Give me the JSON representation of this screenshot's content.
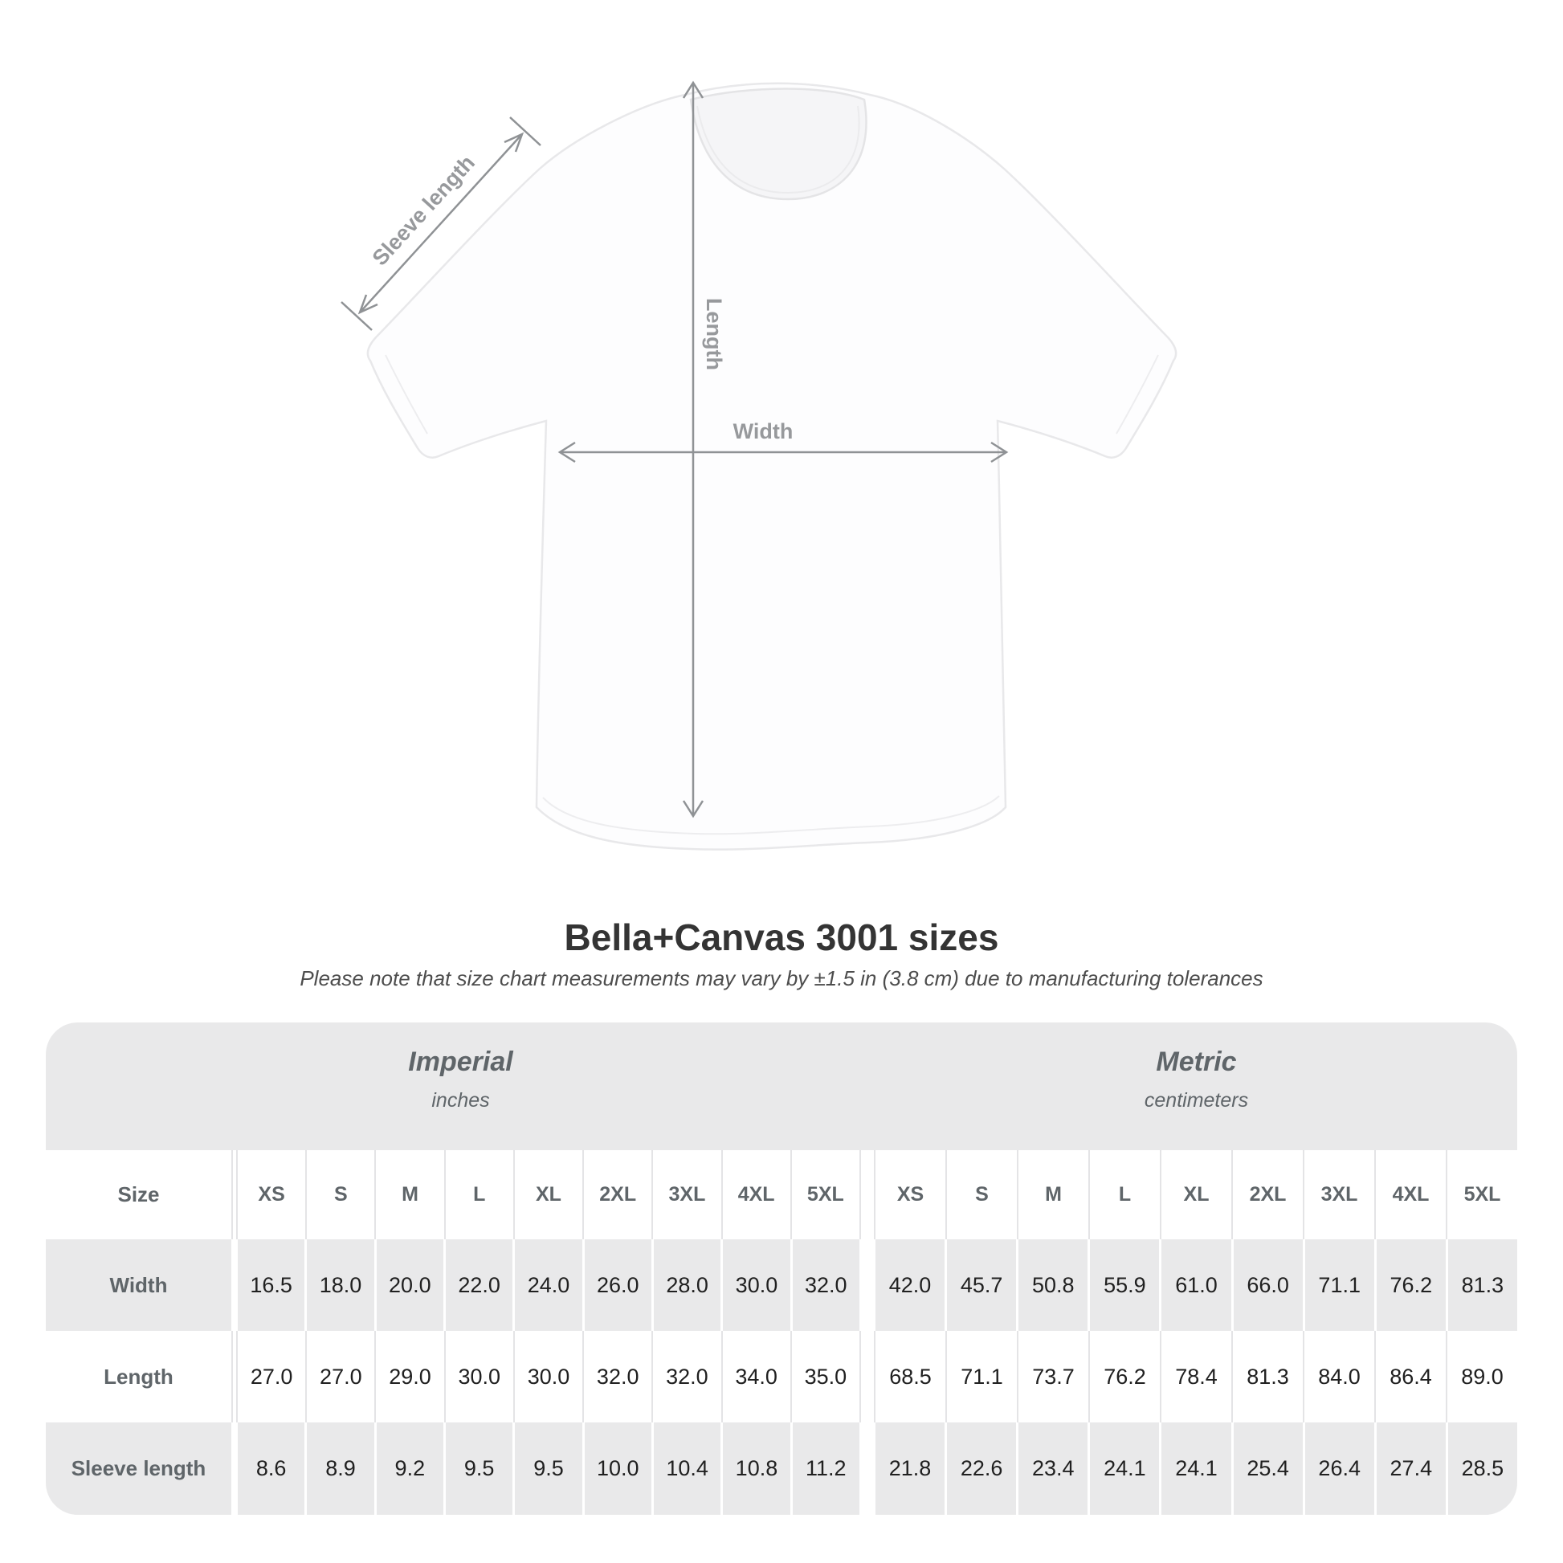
{
  "diagram": {
    "sleeve_length_label": "Sleeve length",
    "length_label": "Length",
    "width_label": "Width"
  },
  "header": {
    "title": "Bella+Canvas 3001 sizes",
    "subtitle": "Please note that size chart measurements may vary by ±1.5 in (3.8 cm) due to manufacturing tolerances"
  },
  "table": {
    "size_label": "Size",
    "groups": [
      {
        "label": "Imperial",
        "unit": "inches"
      },
      {
        "label": "Metric",
        "unit": "centimeters"
      }
    ],
    "sizes": [
      "XS",
      "S",
      "M",
      "L",
      "XL",
      "2XL",
      "3XL",
      "4XL",
      "5XL"
    ],
    "rows": [
      {
        "label": "Width",
        "imperial": [
          "16.5",
          "18.0",
          "20.0",
          "22.0",
          "24.0",
          "26.0",
          "28.0",
          "30.0",
          "32.0"
        ],
        "metric": [
          "42.0",
          "45.7",
          "50.8",
          "55.9",
          "61.0",
          "66.0",
          "71.1",
          "76.2",
          "81.3"
        ]
      },
      {
        "label": "Length",
        "imperial": [
          "27.0",
          "27.0",
          "29.0",
          "30.0",
          "30.0",
          "32.0",
          "32.0",
          "34.0",
          "35.0"
        ],
        "metric": [
          "68.5",
          "71.1",
          "73.7",
          "76.2",
          "78.4",
          "81.3",
          "84.0",
          "86.4",
          "89.0"
        ]
      },
      {
        "label": "Sleeve length",
        "imperial": [
          "8.6",
          "8.9",
          "9.2",
          "9.5",
          "9.5",
          "10.0",
          "10.4",
          "10.8",
          "11.2"
        ],
        "metric": [
          "21.8",
          "22.6",
          "23.4",
          "24.1",
          "24.1",
          "25.4",
          "26.4",
          "27.4",
          "28.5"
        ]
      }
    ]
  },
  "chart_data": {
    "type": "table",
    "title": "Bella+Canvas 3001 sizes",
    "note": "Size chart measurements may vary by ±1.5 in (3.8 cm) due to manufacturing tolerances",
    "columns": [
      "XS",
      "S",
      "M",
      "L",
      "XL",
      "2XL",
      "3XL",
      "4XL",
      "5XL"
    ],
    "unit_groups": [
      "Imperial (inches)",
      "Metric (centimeters)"
    ],
    "rows": [
      {
        "label": "Width",
        "imperial_inches": [
          16.5,
          18.0,
          20.0,
          22.0,
          24.0,
          26.0,
          28.0,
          30.0,
          32.0
        ],
        "metric_cm": [
          42.0,
          45.7,
          50.8,
          55.9,
          61.0,
          66.0,
          71.1,
          76.2,
          81.3
        ]
      },
      {
        "label": "Length",
        "imperial_inches": [
          27.0,
          27.0,
          29.0,
          30.0,
          30.0,
          32.0,
          32.0,
          34.0,
          35.0
        ],
        "metric_cm": [
          68.5,
          71.1,
          73.7,
          76.2,
          78.4,
          81.3,
          84.0,
          86.4,
          89.0
        ]
      },
      {
        "label": "Sleeve length",
        "imperial_inches": [
          8.6,
          8.9,
          9.2,
          9.5,
          9.5,
          10.0,
          10.4,
          10.8,
          11.2
        ],
        "metric_cm": [
          21.8,
          22.6,
          23.4,
          24.1,
          24.1,
          25.4,
          26.4,
          27.4,
          28.5
        ]
      }
    ]
  },
  "colors": {
    "table_bg": "#e9e9ea",
    "header_text": "#5f6569",
    "value_text": "#202020",
    "annotation": "#97999c"
  }
}
